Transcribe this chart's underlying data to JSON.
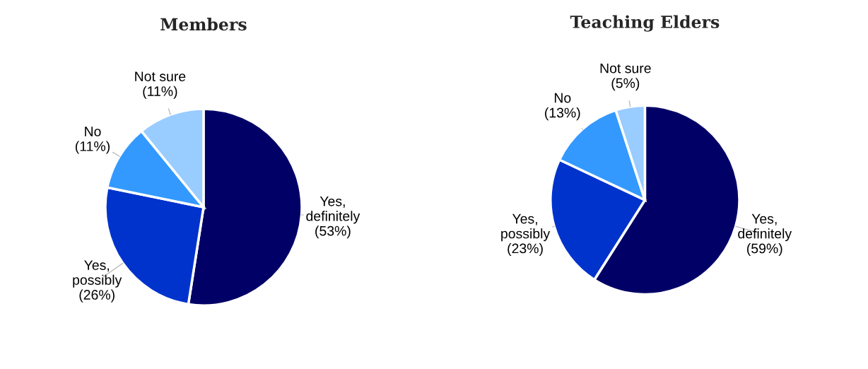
{
  "chart_data": [
    {
      "type": "pie",
      "title": "Members",
      "categories": [
        "Yes, definitely",
        "Yes, possibly",
        "No",
        "Not sure"
      ],
      "values": [
        53,
        26,
        11,
        11
      ],
      "colors": [
        "#000066",
        "#0033cc",
        "#3399ff",
        "#99ccff"
      ],
      "value_labels": [
        "(53%)",
        "(26%)",
        "(11%)",
        "(11%)"
      ]
    },
    {
      "type": "pie",
      "title": "Teaching Elders",
      "categories": [
        "Yes, definitely",
        "Yes, possibly",
        "No",
        "Not sure"
      ],
      "values": [
        59,
        23,
        13,
        5
      ],
      "colors": [
        "#000066",
        "#0033cc",
        "#3399ff",
        "#99ccff"
      ],
      "value_labels": [
        "(59%)",
        "(23%)",
        "(13%)",
        "(5%)"
      ]
    }
  ]
}
